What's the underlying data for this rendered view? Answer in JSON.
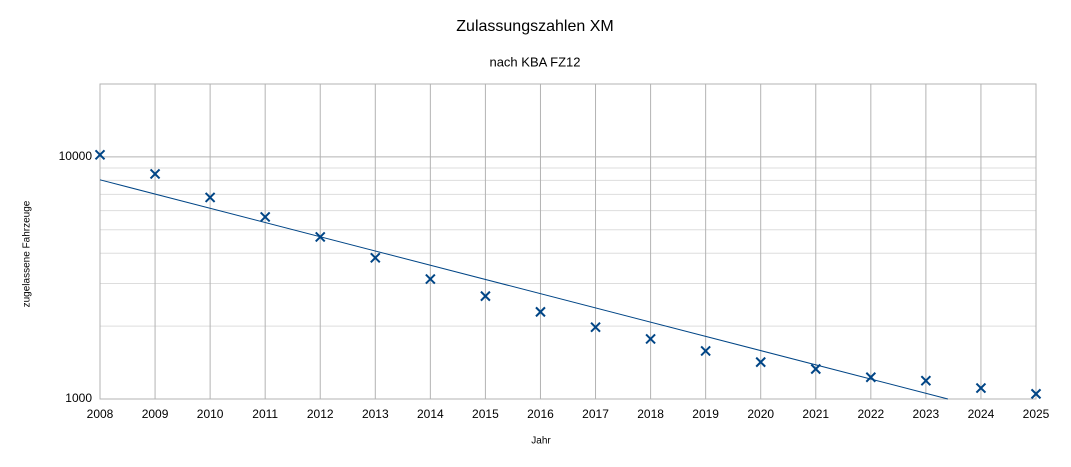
{
  "chart_data": {
    "type": "scatter",
    "title": "Zulassungszahlen XM",
    "subtitle": "nach KBA FZ12",
    "xlabel": "Jahr",
    "ylabel": "zugelassene Fahrzeuge",
    "x": [
      2008,
      2009,
      2010,
      2011,
      2012,
      2013,
      2014,
      2015,
      2016,
      2017,
      2018,
      2019,
      2020,
      2021,
      2022,
      2023,
      2024,
      2025
    ],
    "values": [
      10200,
      8500,
      6800,
      5650,
      4670,
      3830,
      3130,
      2660,
      2290,
      1980,
      1770,
      1580,
      1420,
      1330,
      1230,
      1190,
      1110,
      1050
    ],
    "color": "#004586",
    "trendline": {
      "x": [
        2008,
        2023.4
      ],
      "values": [
        8040,
        1000
      ],
      "color": "#004586"
    },
    "xlim": [
      2008,
      2025
    ],
    "xticks": [
      2008,
      2009,
      2010,
      2011,
      2012,
      2013,
      2014,
      2015,
      2016,
      2017,
      2018,
      2019,
      2020,
      2021,
      2022,
      2023,
      2024,
      2025
    ],
    "ylim": [
      1000,
      20000
    ],
    "yticks": [
      1000,
      10000
    ],
    "yminor": [
      2000,
      3000,
      4000,
      5000,
      6000,
      7000,
      8000,
      9000
    ],
    "log_y": true,
    "grid": true
  }
}
